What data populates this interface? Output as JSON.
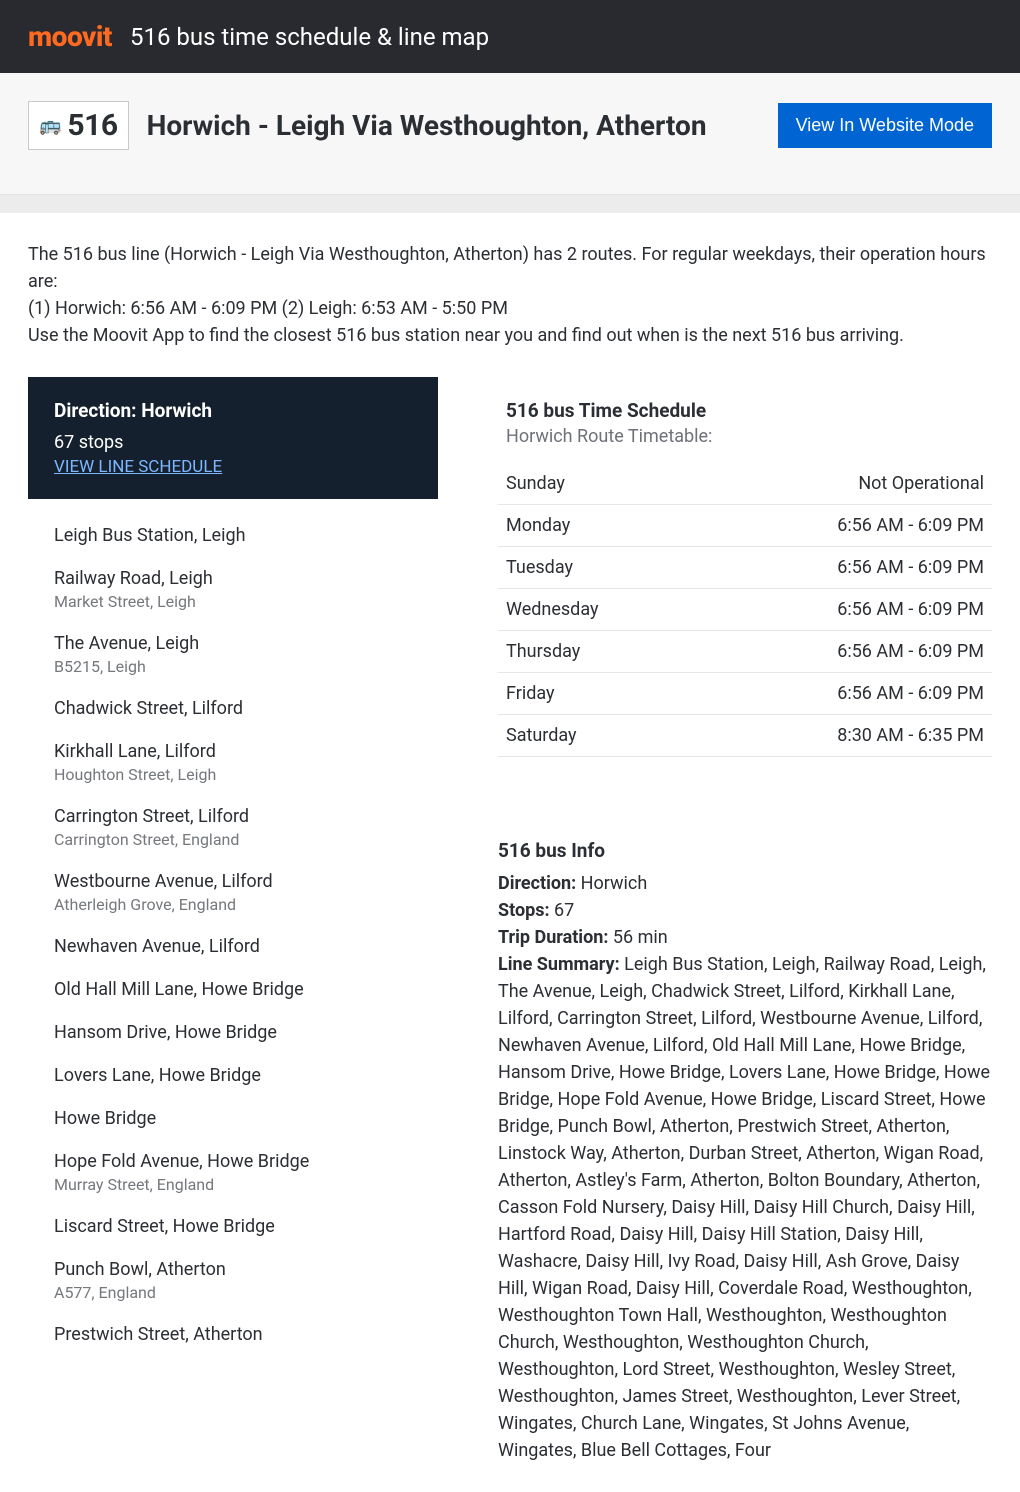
{
  "brand": {
    "logo_text": "moovit",
    "logo_color": "#ff6a20"
  },
  "top_title": "516 bus time schedule & line map",
  "route_badge": {
    "icon": "🚌",
    "number": "516"
  },
  "hero_title": "Horwich - Leigh Via Westhoughton, Atherton",
  "website_mode_btn": "View In Website Mode",
  "intro_text": "The 516 bus line (Horwich - Leigh Via Westhoughton, Atherton) has 2 routes. For regular weekdays, their operation hours are:\n(1) Horwich: 6:56 AM - 6:09 PM (2) Leigh: 6:53 AM - 5:50 PM\nUse the Moovit App to find the closest 516 bus station near you and find out when is the next 516 bus arriving.",
  "direction_card": {
    "title": "Direction: Horwich",
    "sub": "67 stops",
    "link": "VIEW LINE SCHEDULE"
  },
  "stops": [
    {
      "name": "Leigh Bus Station, Leigh"
    },
    {
      "name": "Railway Road, Leigh",
      "sub": "Market Street, Leigh"
    },
    {
      "name": "The Avenue, Leigh",
      "sub": "B5215, Leigh"
    },
    {
      "name": "Chadwick Street, Lilford"
    },
    {
      "name": "Kirkhall Lane, Lilford",
      "sub": "Houghton Street, Leigh"
    },
    {
      "name": "Carrington Street, Lilford",
      "sub": "Carrington Street, England"
    },
    {
      "name": "Westbourne Avenue, Lilford",
      "sub": "Atherleigh Grove, England"
    },
    {
      "name": "Newhaven Avenue, Lilford"
    },
    {
      "name": "Old Hall Mill Lane, Howe Bridge"
    },
    {
      "name": "Hansom Drive, Howe Bridge"
    },
    {
      "name": "Lovers Lane, Howe Bridge"
    },
    {
      "name": "Howe Bridge"
    },
    {
      "name": "Hope Fold Avenue, Howe Bridge",
      "sub": "Murray Street, England"
    },
    {
      "name": "Liscard Street, Howe Bridge"
    },
    {
      "name": "Punch Bowl, Atherton",
      "sub": "A577, England"
    },
    {
      "name": "Prestwich Street, Atherton"
    }
  ],
  "schedule": {
    "title": "516 bus Time Schedule",
    "sub": "Horwich Route Timetable:",
    "rows": [
      {
        "day": "Sunday",
        "hours": "Not Operational"
      },
      {
        "day": "Monday",
        "hours": "6:56 AM - 6:09 PM"
      },
      {
        "day": "Tuesday",
        "hours": "6:56 AM - 6:09 PM"
      },
      {
        "day": "Wednesday",
        "hours": "6:56 AM - 6:09 PM"
      },
      {
        "day": "Thursday",
        "hours": "6:56 AM - 6:09 PM"
      },
      {
        "day": "Friday",
        "hours": "6:56 AM - 6:09 PM"
      },
      {
        "day": "Saturday",
        "hours": "8:30 AM - 6:35 PM"
      }
    ]
  },
  "info": {
    "title": "516 bus Info",
    "direction_label": "Direction:",
    "direction_value": " Horwich",
    "stops_label": "Stops:",
    "stops_value": " 67",
    "duration_label": "Trip Duration:",
    "duration_value": " 56 min",
    "summary_label": "Line Summary:",
    "summary_value": " Leigh Bus Station, Leigh, Railway Road, Leigh, The Avenue, Leigh, Chadwick Street, Lilford, Kirkhall Lane, Lilford, Carrington Street, Lilford, Westbourne Avenue, Lilford, Newhaven Avenue, Lilford, Old Hall Mill Lane, Howe Bridge, Hansom Drive, Howe Bridge, Lovers Lane, Howe Bridge, Howe Bridge, Hope Fold Avenue, Howe Bridge, Liscard Street, Howe Bridge, Punch Bowl, Atherton, Prestwich Street, Atherton, Linstock Way, Atherton, Durban Street, Atherton, Wigan Road, Atherton, Astley's Farm, Atherton, Bolton Boundary, Atherton, Casson Fold Nursery, Daisy Hill, Daisy Hill Church, Daisy Hill, Hartford Road, Daisy Hill, Daisy Hill Station, Daisy Hill, Washacre, Daisy Hill, Ivy Road, Daisy Hill, Ash Grove, Daisy Hill, Wigan Road, Daisy Hill, Coverdale Road, Westhoughton, Westhoughton Town Hall, Westhoughton, Westhoughton Church, Westhoughton, Westhoughton Church, Westhoughton, Lord Street, Westhoughton, Wesley Street, Westhoughton, James Street, Westhoughton, Lever Street, Wingates, Church Lane, Wingates, St Johns Avenue, Wingates, Blue Bell Cottages, Four"
  },
  "colors": {
    "topbar_bg": "#292a30",
    "accent": "#ff6a20",
    "button_bg": "#0064d2",
    "direction_bg": "#15202e",
    "link_color": "#7db6ff",
    "text_muted": "#6e7278",
    "border": "#e6e6e6"
  }
}
